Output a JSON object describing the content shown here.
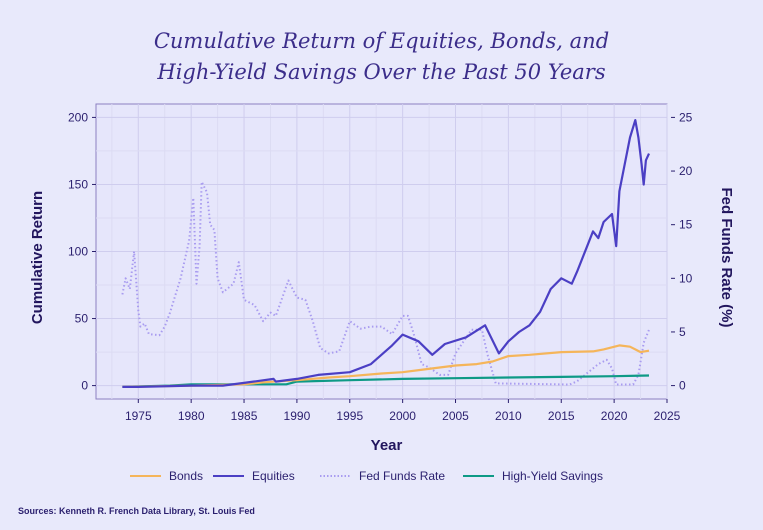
{
  "chart_data": {
    "type": "line",
    "title": "Cumulative Return of Equities, Bonds, and High-Yield Savings Over the Past 50 Years",
    "title_lines": [
      "Cumulative Return of Equities, Bonds, and",
      "High-Yield Savings Over the Past 50 Years"
    ],
    "xlabel": "Year",
    "ylabel": "Cumulative Return",
    "y2label": "Fed Funds Rate (%)",
    "xlim": [
      1971,
      2025
    ],
    "ylim": [
      -10,
      210
    ],
    "y2lim": [
      -1.25,
      26.25
    ],
    "x_ticks": [
      1975,
      1980,
      1985,
      1990,
      1995,
      2000,
      2005,
      2010,
      2015,
      2020,
      2025
    ],
    "y_ticks": [
      0,
      50,
      100,
      150,
      200
    ],
    "y2_ticks": [
      0,
      5,
      10,
      15,
      20,
      25
    ],
    "grid": true,
    "legend_position": "bottom",
    "source": "Sources: Kenneth R. French Data Library, St. Louis Fed",
    "series": [
      {
        "name": "Bonds",
        "axis": "left",
        "color": "#f5b55a",
        "style": "solid",
        "x": [
          1973.5,
          1980,
          1985,
          1987,
          1990,
          1993,
          1995,
          1998,
          2000,
          2002,
          2005,
          2007,
          2008.5,
          2010,
          2012,
          2015,
          2018,
          2019,
          2020.5,
          2021.5,
          2022.5,
          2023.3
        ],
        "y": [
          -1,
          0,
          1,
          2.5,
          4,
          6,
          7,
          9,
          10,
          12,
          15,
          16,
          18,
          22,
          23,
          25,
          25.5,
          27,
          30,
          29,
          25,
          26
        ]
      },
      {
        "name": "Equities",
        "axis": "left",
        "color": "#4b3fc4",
        "style": "solid",
        "x": [
          1973.5,
          1975,
          1980,
          1983,
          1985,
          1987.8,
          1988,
          1990,
          1992,
          1995,
          1997,
          1999,
          2000,
          2001.5,
          2002.8,
          2004,
          2006,
          2007.8,
          2009.1,
          2010,
          2011,
          2012,
          2013,
          2014,
          2015,
          2016,
          2016.5,
          2017.5,
          2018,
          2018.5,
          2019,
          2019.8,
          2020.2,
          2020.5,
          2021,
          2021.5,
          2022,
          2022.3,
          2022.6,
          2022.8,
          2023,
          2023.3
        ],
        "y": [
          -1,
          -1,
          0,
          0,
          2,
          5,
          3,
          5,
          8,
          10,
          16,
          30,
          38,
          33,
          23,
          31,
          36,
          45,
          24,
          33,
          40,
          45,
          55,
          72,
          80,
          76,
          85,
          105,
          115,
          110,
          122,
          128,
          104,
          145,
          165,
          185,
          198,
          185,
          165,
          150,
          168,
          173
        ]
      },
      {
        "name": "Fed Funds Rate",
        "axis": "right",
        "color": "#a99cf0",
        "style": "dotted",
        "x": [
          1973.5,
          1973.8,
          1974.2,
          1974.6,
          1975,
          1975.2,
          1975.6,
          1976,
          1977,
          1977.5,
          1978,
          1979,
          1979.8,
          1980.2,
          1980.5,
          1980.8,
          1981,
          1981.5,
          1981.8,
          1982.2,
          1982.5,
          1983,
          1984,
          1984.5,
          1985,
          1986,
          1986.8,
          1987.5,
          1988,
          1989.2,
          1990,
          1990.8,
          1991.5,
          1992.2,
          1993,
          1994,
          1995,
          1996,
          1997,
          1998,
          1999,
          2000,
          2000.5,
          2001,
          2001.8,
          2002.5,
          2003.5,
          2004.3,
          2005,
          2006.5,
          2007.5,
          2008,
          2008.8,
          2015.8,
          2016.5,
          2017.5,
          2018.5,
          2019.3,
          2019.8,
          2020.2,
          2021.8,
          2022.3,
          2022.8,
          2023.3
        ],
        "y": [
          8.5,
          10,
          9,
          12.5,
          7,
          5.5,
          5.8,
          4.8,
          4.7,
          5.5,
          6.8,
          10,
          13.5,
          17.5,
          9.5,
          13,
          19,
          18,
          15,
          14.5,
          10,
          8.7,
          9.5,
          11.5,
          8,
          7.5,
          6,
          6.8,
          6.5,
          9.8,
          8.2,
          8,
          6,
          3.5,
          3,
          3.2,
          6,
          5.3,
          5.5,
          5.5,
          4.8,
          6.5,
          6.5,
          5,
          2,
          1.7,
          1,
          1,
          3,
          5.2,
          5.2,
          3,
          0.2,
          0.1,
          0.4,
          1.2,
          2,
          2.4,
          1.6,
          0.1,
          0.1,
          1,
          4,
          5.2
        ]
      },
      {
        "name": "High-Yield Savings",
        "axis": "left",
        "color": "#0e9a86",
        "style": "solid",
        "x": [
          1973.5,
          1978,
          1980,
          1989,
          1990,
          1995,
          2000,
          2005,
          2010,
          2015,
          2020,
          2023.3
        ],
        "y": [
          -1,
          0,
          1,
          1,
          3,
          4,
          5,
          5.5,
          6,
          6.5,
          7,
          7.5
        ]
      }
    ]
  }
}
